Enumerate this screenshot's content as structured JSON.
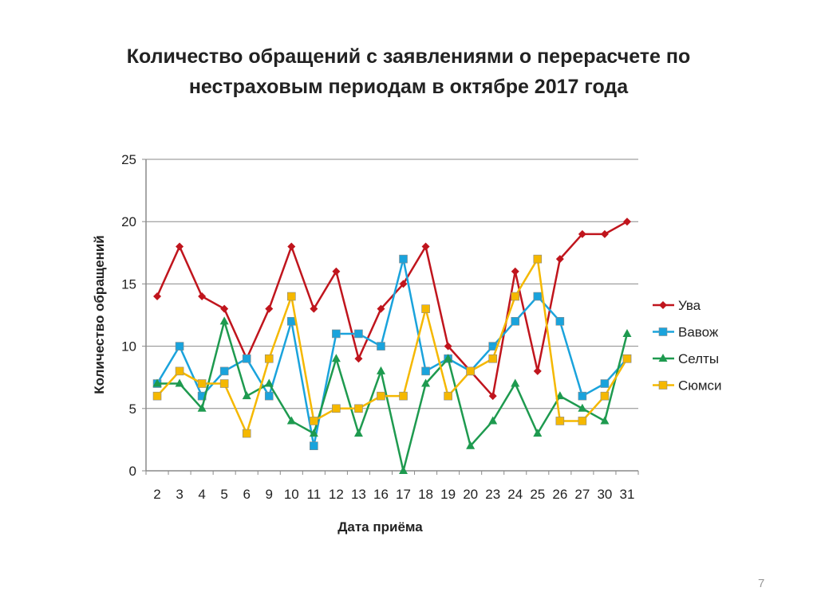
{
  "page_number": "7",
  "chart_data": {
    "type": "line",
    "title_line1": "Количество обращений с заявлениями о перерасчете по",
    "title_line2": "нестраховым периодам в октябре 2017 года",
    "xlabel": "Дата приёма",
    "ylabel": "Количество обращений",
    "ylim": [
      0,
      25
    ],
    "yticks": [
      0,
      5,
      10,
      15,
      20,
      25
    ],
    "grid": true,
    "legend": "right",
    "categories": [
      "2",
      "3",
      "4",
      "5",
      "6",
      "9",
      "10",
      "11",
      "12",
      "13",
      "16",
      "17",
      "18",
      "19",
      "20",
      "23",
      "24",
      "25",
      "26",
      "27",
      "30",
      "31"
    ],
    "series": [
      {
        "name": "Ува",
        "color": "#c0151d",
        "marker": "diamond",
        "values": [
          14,
          18,
          14,
          13,
          9,
          13,
          18,
          13,
          16,
          9,
          13,
          15,
          18,
          10,
          8,
          6,
          16,
          8,
          17,
          19,
          19,
          20
        ]
      },
      {
        "name": "Вавож",
        "color": "#1aa3dc",
        "marker": "square",
        "values": [
          7,
          10,
          6,
          8,
          9,
          6,
          12,
          2,
          11,
          11,
          10,
          17,
          8,
          9,
          8,
          10,
          12,
          14,
          12,
          6,
          7,
          9
        ]
      },
      {
        "name": "Селты",
        "color": "#1e9a4f",
        "marker": "triangle",
        "values": [
          7,
          7,
          5,
          12,
          6,
          7,
          4,
          3,
          9,
          3,
          8,
          0,
          7,
          9,
          2,
          4,
          7,
          3,
          6,
          5,
          4,
          11
        ]
      },
      {
        "name": "Сюмси",
        "color": "#f5b800",
        "marker": "square",
        "values": [
          6,
          8,
          7,
          7,
          3,
          9,
          14,
          4,
          5,
          5,
          6,
          6,
          13,
          6,
          8,
          9,
          14,
          17,
          4,
          4,
          6,
          9
        ]
      }
    ]
  }
}
